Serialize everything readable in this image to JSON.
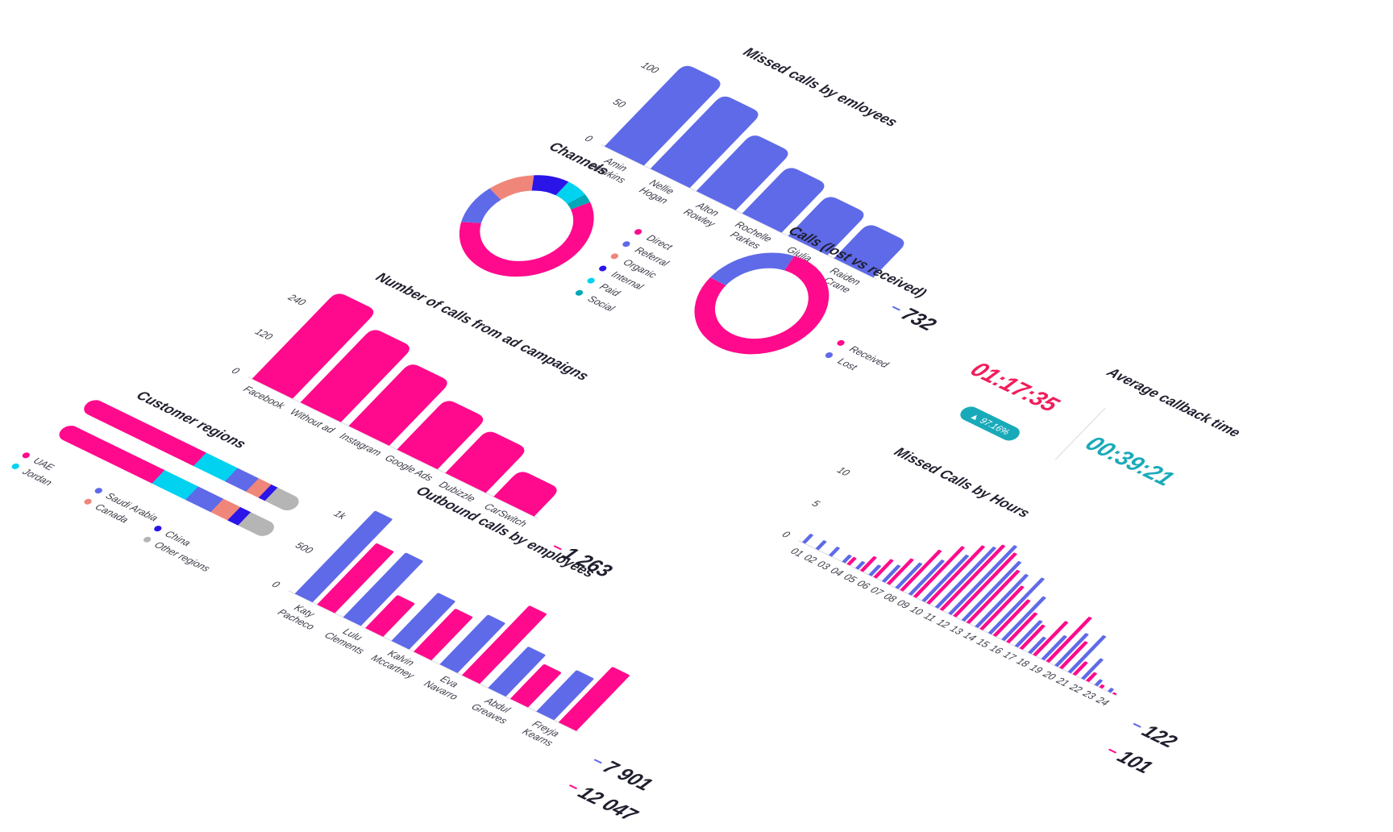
{
  "colors": {
    "blue": "#5f6ae8",
    "pink": "#ff0a8c",
    "salmon": "#f0857a",
    "deep_blue": "#2a14e8",
    "cyan": "#00d2f0",
    "teal": "#00a8b8",
    "grey": "#b5b5b5",
    "axis": "#e3e3ea",
    "kpi_red": "#f01e5a",
    "kpi_teal": "#19aab9"
  },
  "chart_data": [
    {
      "id": "missed_by_employees",
      "type": "bar",
      "title": "Missed calls by emloyees",
      "yticks": [
        "100",
        "50",
        "0"
      ],
      "ylim": [
        0,
        110
      ],
      "categories": [
        [
          "Amin",
          "Hawkins"
        ],
        [
          "Nellie",
          "Hogan"
        ],
        [
          "Alton",
          "Rowley"
        ],
        [
          "Rochelle",
          "Parkes"
        ],
        [
          "Giulia",
          "Bean"
        ],
        [
          "Raiden",
          "Crane"
        ]
      ],
      "values": [
        100,
        90,
        70,
        58,
        50,
        43
      ],
      "totals": [
        {
          "value": "732",
          "color": "blue"
        }
      ]
    },
    {
      "id": "channels",
      "type": "pie",
      "title": "Channels",
      "labels": [
        "Direct",
        "Referral",
        "Organic",
        "Internal",
        "Paid",
        "Social"
      ],
      "values": [
        59,
        12,
        11,
        9,
        6,
        3
      ],
      "colors": [
        "pink",
        "blue",
        "salmon",
        "deep_blue",
        "cyan",
        "teal"
      ]
    },
    {
      "id": "lost_vs_received",
      "type": "pie",
      "title": "Calls (lost vs received)",
      "labels": [
        "Received",
        "Lost"
      ],
      "values": [
        78,
        22
      ],
      "colors": [
        "pink",
        "blue"
      ]
    },
    {
      "id": "ad_campaigns",
      "type": "bar",
      "title": "Number of calls from ad campaigns",
      "yticks": [
        "240",
        "120",
        "0"
      ],
      "ylim": [
        0,
        250
      ],
      "categories": [
        [
          "Facebook"
        ],
        [
          "Without ad"
        ],
        [
          "Instagram"
        ],
        [
          "Google Ads"
        ],
        [
          "Dubizzle"
        ],
        [
          "CarSwitch"
        ]
      ],
      "values": [
        240,
        205,
        175,
        140,
        120,
        75
      ],
      "totals": [
        {
          "value": "1 263",
          "color": "pink"
        }
      ]
    },
    {
      "id": "customer_regions",
      "type": "bar",
      "title": "Customer regions",
      "labels": [
        "UAE",
        "Jordan",
        "Saudi Arabia",
        "Canada",
        "China",
        "Other regions"
      ],
      "colors": [
        "pink",
        "cyan",
        "blue",
        "salmon",
        "deep_blue",
        "grey"
      ],
      "rows": [
        [
          54,
          15,
          10,
          6,
          3,
          12
        ],
        [
          46,
          16,
          12,
          8,
          5,
          13
        ]
      ]
    },
    {
      "id": "outbound_by_employees",
      "type": "bar",
      "title": "Outbound calls by employees",
      "yticks": [
        "1k",
        "500",
        "0"
      ],
      "ylim": [
        0,
        1100
      ],
      "categories": [
        [
          "Katy",
          "Pacheco"
        ],
        [
          "Lulu",
          "Clements"
        ],
        [
          "Kalvin",
          "Mccartney"
        ],
        [
          "Eva",
          "Navarro"
        ],
        [
          "Abdul",
          "Greaves"
        ],
        [
          "Freyja",
          "Kearns"
        ]
      ],
      "series": [
        {
          "color": "blue",
          "values": [
            1000,
            780,
            580,
            600,
            500,
            500
          ]
        },
        {
          "color": "pink",
          "values": [
            740,
            400,
            520,
            840,
            420,
            670
          ]
        }
      ],
      "totals": [
        {
          "value": "7 901",
          "color": "blue"
        },
        {
          "value": "12 047",
          "color": "pink"
        }
      ]
    },
    {
      "id": "missed_by_hours",
      "type": "bar",
      "title": "Missed Calls by Hours",
      "yticks": [
        "10",
        "5",
        "0"
      ],
      "ylim": [
        0,
        11
      ],
      "categories": [
        "01",
        "02",
        "03",
        "04",
        "05",
        "06",
        "07",
        "08",
        "09",
        "10",
        "11",
        "12",
        "13",
        "14",
        "15",
        "16",
        "17",
        "18",
        "19",
        "20",
        "21",
        "22",
        "23",
        "24"
      ],
      "series": [
        {
          "color": "blue",
          "values": [
            1.2,
            1.2,
            1.2,
            1,
            1,
            1.4,
            2.3,
            3.5,
            4.8,
            6.4,
            8.4,
            9.5,
            8.2,
            7.3,
            7.7,
            6,
            3.6,
            2.2,
            3.3,
            4.5,
            5.1,
            2.8,
            0.8,
            0.5
          ]
        },
        {
          "color": "pink",
          "values": [
            0,
            0,
            0,
            1,
            2,
            2.5,
            3.5,
            5.6,
            7,
            8,
            9,
            8.8,
            7.3,
            6,
            5,
            4.1,
            3.3,
            4.7,
            6.2,
            3.7,
            1.8,
            1.2,
            0.4,
            0.2
          ]
        }
      ],
      "totals": [
        {
          "value": "122",
          "color": "blue"
        },
        {
          "value": "101",
          "color": "pink"
        }
      ]
    }
  ],
  "callback": {
    "title": "Average callback time",
    "value1": "01:17:35",
    "value2": "00:39:21",
    "badge": "▲ 97.16%"
  }
}
